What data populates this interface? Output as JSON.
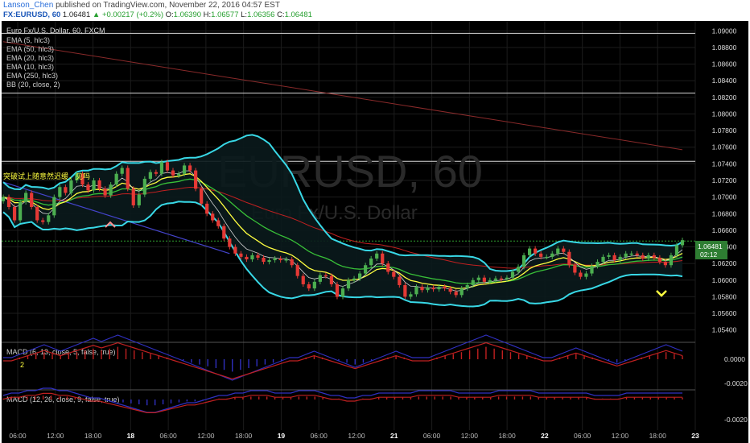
{
  "header": {
    "author": "Lanson_Chen",
    "published_text": "published on TradingView.com, November 22, 2016 04:57 EST",
    "symbol": "FX:EURUSD, 60",
    "last": "1.06481",
    "change_arrow": "▲",
    "change": "+0.00217 (+0.2%)",
    "o_label": "O:",
    "o_value": "1.06390",
    "h_label": "H:",
    "h_value": "1.06577",
    "l_label": "L:",
    "l_value": "1.06356",
    "c_label": "C:",
    "c_value": "1.06481"
  },
  "legend": {
    "title": "Euro Fx/U.S. Dollar, 60, FXCM",
    "items": [
      "EMA (5, hlc3)",
      "EMA (50, hlc3)",
      "EMA (20, hlc3)",
      "EMA (10, hlc3)",
      "EMA (250, hlc3)",
      "BB (20, close, 2)"
    ]
  },
  "watermark": {
    "big": "EURUSD, 60",
    "small": "Euro Fx/U.S. Dollar"
  },
  "annotation": {
    "text": "突破试上随意然迟缓，见吗",
    "marker": "2"
  },
  "macd1": {
    "label": "MACD (6, 13, close, 5, false, true)",
    "ticks": [
      "0.0000",
      "-0.0020"
    ]
  },
  "macd2": {
    "label": "MACD (12, 26, close, 9, false, true)",
    "ticks": [
      "-0.0020"
    ]
  },
  "price_tag": {
    "price": "1.06481",
    "countdown": "02:12"
  },
  "colors": {
    "background": "#000000",
    "grid": "#1c1c1c",
    "up": "#4caf50",
    "down": "#e53935",
    "bb": "#38d8e6",
    "ema5": "#cfcfcf",
    "ema10": "#ffff40",
    "ema20": "#38c038",
    "ema50": "#c02020",
    "ema250": "#8a2a2a",
    "trendline": "#4444cc",
    "macd": "#3030c0",
    "signal": "#c02020",
    "hline": "#30a030"
  },
  "chart_data": {
    "type": "candlestick",
    "timeframe": "60",
    "y_range": [
      1.053,
      1.091
    ],
    "y_ticks": [
      1.09,
      1.088,
      1.086,
      1.084,
      1.082,
      1.08,
      1.078,
      1.076,
      1.074,
      1.072,
      1.07,
      1.068,
      1.066,
      1.064,
      1.062,
      1.06,
      1.058,
      1.056,
      1.054
    ],
    "y_tick_labels": [
      "1.09000",
      "1.08800",
      "1.08600",
      "1.08400",
      "1.08200",
      "1.08000",
      "1.07800",
      "1.07600",
      "1.07400",
      "1.07200",
      "1.07000",
      "1.06800",
      "1.06600",
      "1.06400",
      "1.06200",
      "1.06000",
      "1.05800",
      "1.05600",
      "1.05400"
    ],
    "x_tick_labels": [
      "06:00",
      "12:00",
      "18:00",
      "18",
      "06:00",
      "12:00",
      "18:00",
      "19",
      "06:00",
      "12:00",
      "21",
      "06:00",
      "12:00",
      "18:00",
      "22",
      "06:00",
      "12:00",
      "18:00",
      "23"
    ],
    "horizontal_lines": [
      1.0897,
      1.0825,
      1.0743,
      1.0647
    ],
    "last_price": 1.06481,
    "closes": [
      1.07,
      1.0688,
      1.0672,
      1.0694,
      1.0705,
      1.0688,
      1.0672,
      1.067,
      1.0678,
      1.07,
      1.0712,
      1.0705,
      1.072,
      1.0728,
      1.0715,
      1.0708,
      1.072,
      1.071,
      1.0702,
      1.0715,
      1.0728,
      1.0735,
      1.071,
      1.069,
      1.0703,
      1.0722,
      1.073,
      1.0728,
      1.0742,
      1.0732,
      1.0726,
      1.0728,
      1.0738,
      1.0732,
      1.071,
      1.0692,
      1.068,
      1.0672,
      1.0665,
      1.065,
      1.064,
      1.0632,
      1.0628,
      1.0625,
      1.063,
      1.0627,
      1.0622,
      1.0624,
      1.0626,
      1.0624,
      1.0625,
      1.0618,
      1.0605,
      1.0595,
      1.059,
      1.0598,
      1.0606,
      1.0605,
      1.0595,
      1.058,
      1.059,
      1.06,
      1.0602,
      1.0608,
      1.0618,
      1.0626,
      1.0632,
      1.062,
      1.061,
      1.0604,
      1.0594,
      1.058,
      1.0583,
      1.0592,
      1.0588,
      1.0591,
      1.0589,
      1.0592,
      1.059,
      1.0586,
      1.0582,
      1.059,
      1.0594,
      1.06,
      1.0603,
      1.0598,
      1.06,
      1.0602,
      1.0601,
      1.0603,
      1.061,
      1.0616,
      1.063,
      1.0638,
      1.0632,
      1.0628,
      1.0628,
      1.0632,
      1.0638,
      1.0634,
      1.0618,
      1.0609,
      1.0604,
      1.0608,
      1.0617,
      1.0622,
      1.0628,
      1.063,
      1.0624,
      1.0628,
      1.0632,
      1.0632,
      1.063,
      1.0626,
      1.063,
      1.0627,
      1.0622,
      1.0618,
      1.063,
      1.0642,
      1.06481
    ],
    "macd1_hist": [
      0,
      0,
      1,
      2,
      3,
      4,
      3,
      2,
      3,
      4,
      5,
      6,
      5,
      6,
      7,
      6,
      5,
      4,
      3,
      2,
      1,
      0,
      -1,
      -2,
      -3,
      -4,
      -5,
      -6,
      -7,
      -6,
      -5,
      -4,
      -3,
      -2,
      -1,
      0,
      0,
      1,
      2,
      1,
      0,
      -1,
      -2,
      -3,
      -2,
      -1,
      0,
      1,
      2,
      1,
      0,
      0,
      0,
      1,
      2,
      3,
      4,
      5,
      6,
      7,
      6,
      5,
      4,
      3,
      2,
      1,
      0,
      0,
      1,
      2,
      3,
      2,
      1,
      0,
      -1,
      -2,
      -1,
      0,
      1,
      2,
      3,
      4,
      3,
      2
    ],
    "macd2_hist": [
      1,
      2,
      2,
      3,
      3,
      4,
      4,
      3,
      3,
      2,
      1,
      0,
      0,
      -1,
      -2,
      -3,
      -4,
      -5,
      -6,
      -6,
      -5,
      -4,
      -3,
      -2,
      -2,
      -1,
      0,
      1,
      1,
      2,
      2,
      3,
      3,
      3,
      2,
      2,
      2,
      3,
      3,
      3,
      2,
      1,
      1,
      0,
      0,
      1,
      1,
      2,
      2,
      2,
      2,
      2,
      3,
      3,
      3,
      3,
      3,
      2,
      2,
      2,
      2,
      2,
      3,
      3,
      3,
      3,
      3,
      2,
      2,
      2,
      2,
      2,
      2,
      2,
      1,
      1,
      1,
      1,
      2,
      2,
      2,
      2,
      2,
      2,
      2,
      2
    ]
  }
}
